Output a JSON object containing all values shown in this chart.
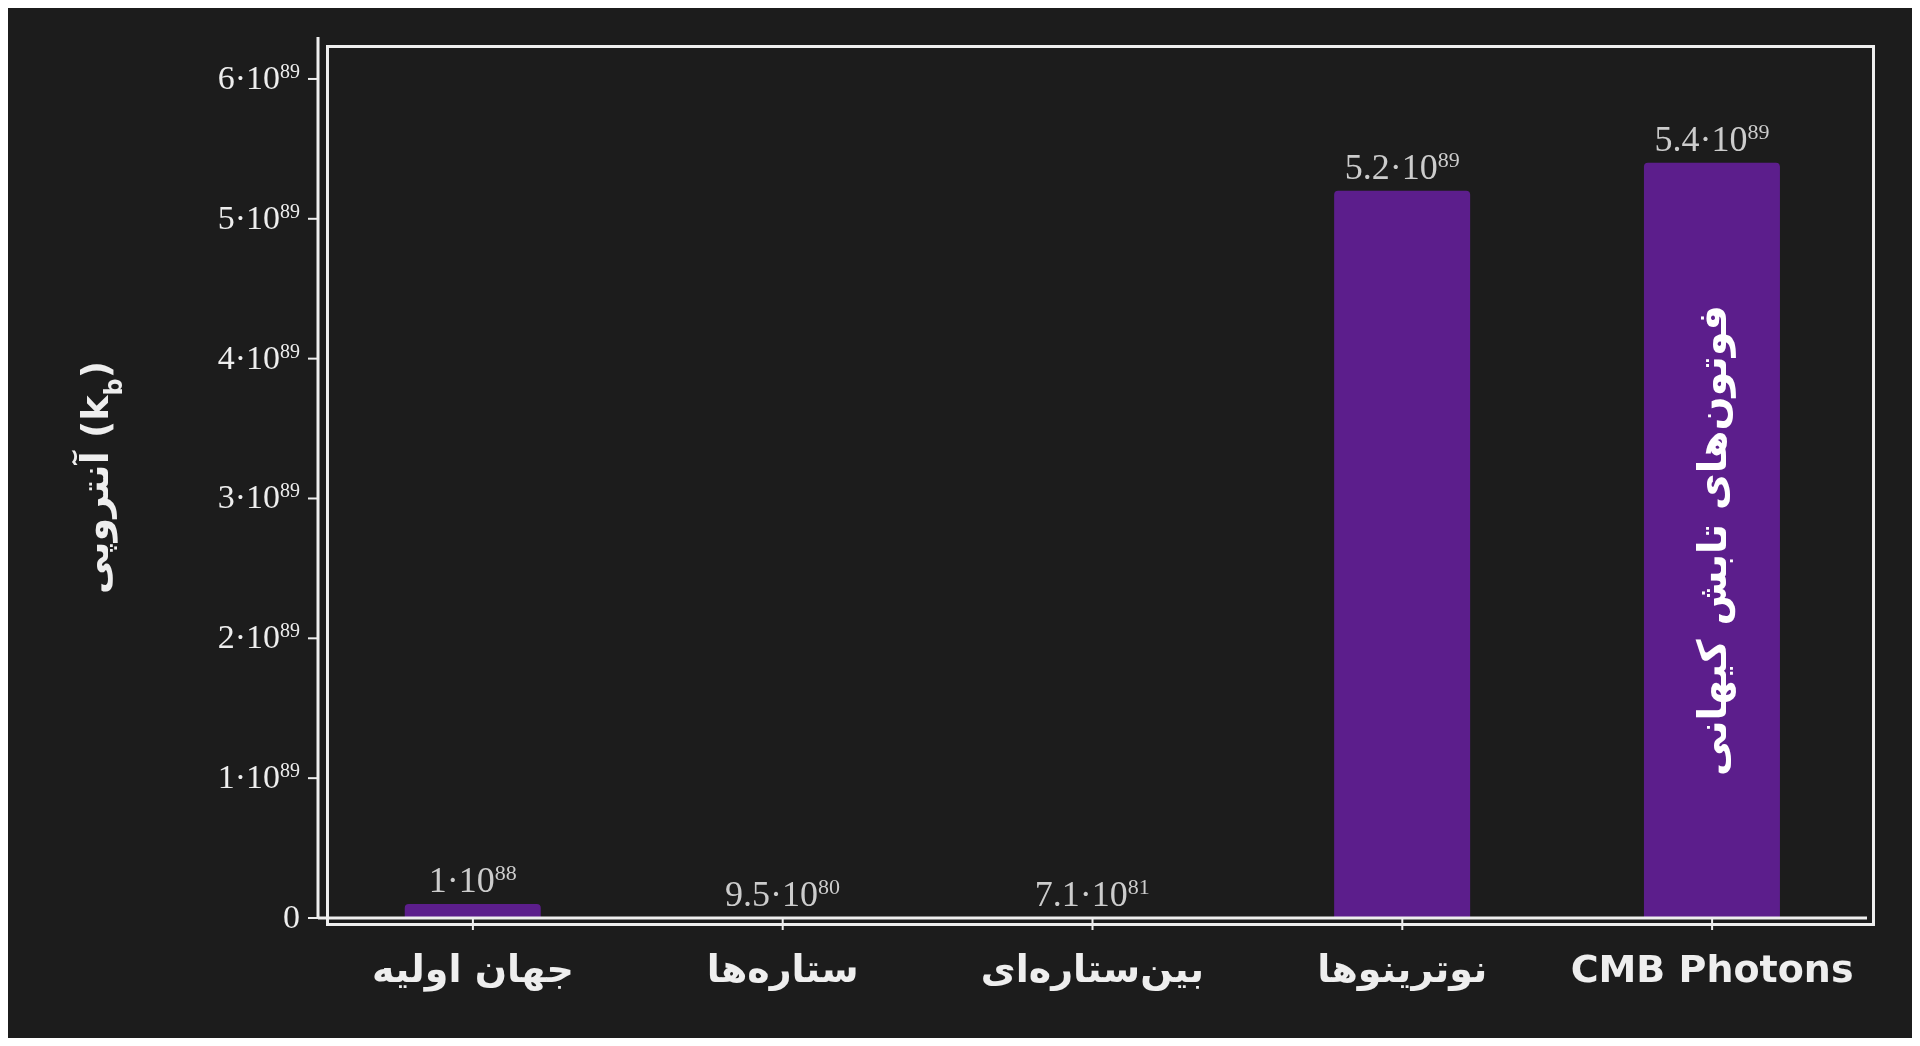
{
  "chart_data": {
    "type": "bar",
    "ylabel": "آنتروپی (k$_{b}$)",
    "categories": [
      "جهان اولیه",
      "ستاره‌ها",
      "بین‌ستاره‌ای",
      "نوترینوها",
      "CMB Photons"
    ],
    "values": [
      1e+88,
      9.5e+80,
      7.1e+81,
      5.2e+89,
      5.4e+89
    ],
    "value_labels": [
      "1·10$^{88}$",
      "9.5·10$^{80}$",
      "7.1·10$^{81}$",
      "5.2·10$^{89}$",
      "5.4·10$^{89}$"
    ],
    "color": "#5c1e8c",
    "ylim": [
      0,
      6.3e+89
    ],
    "yticks": [
      0,
      {
        "value": 1e+89,
        "label": "1·10$^{89}$"
      },
      {
        "value": 2e+89,
        "label": "2·10$^{89}$"
      },
      {
        "value": 3e+89,
        "label": "3·10$^{89}$"
      },
      {
        "value": 4e+89,
        "label": "4·10$^{89}$"
      },
      {
        "value": 5e+89,
        "label": "5·10$^{89}$"
      },
      {
        "value": 6e+89,
        "label": "6·10$^{89}$"
      }
    ],
    "annotations": [
      "فوتون‌های تابش کیهانی"
    ],
    "grid": false,
    "legend": false
  }
}
